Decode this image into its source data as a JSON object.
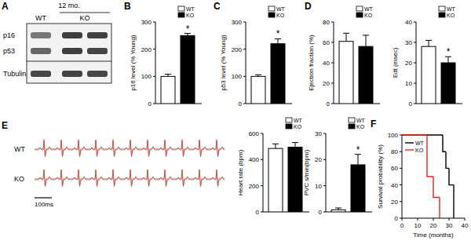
{
  "blot": {
    "panel": "A",
    "title": "12 mo.",
    "lanes": [
      "WT",
      "KO"
    ],
    "rows": [
      "p16",
      "p53",
      "Tubulin"
    ]
  },
  "ecg": {
    "panel": "E",
    "traces": [
      "WT",
      "KO"
    ],
    "scale_bar": "100ms"
  },
  "chart_data": [
    {
      "panel": "B",
      "type": "bar",
      "y_label": "p16 level (% Young)",
      "categories": [
        null
      ],
      "ylim": [
        0,
        300
      ],
      "yticks": [
        0,
        100,
        200,
        300
      ],
      "legend": "upper right",
      "series": [
        {
          "name": "WT",
          "color": "#ffffff",
          "values": [
            100
          ],
          "errors": [
            8
          ]
        },
        {
          "name": "KO",
          "color": "#000000",
          "values": [
            250
          ],
          "errors": [
            8
          ],
          "annotations": [
            "*"
          ]
        }
      ]
    },
    {
      "panel": "C",
      "type": "bar",
      "y_label": "p53 level (% Young)",
      "categories": [
        null
      ],
      "ylim": [
        0,
        300
      ],
      "yticks": [
        0,
        100,
        200,
        300
      ],
      "legend": "upper right",
      "series": [
        {
          "name": "WT",
          "color": "#ffffff",
          "values": [
            100
          ],
          "errors": [
            6
          ]
        },
        {
          "name": "KO",
          "color": "#000000",
          "values": [
            220
          ],
          "errors": [
            18
          ],
          "annotations": [
            "*"
          ]
        }
      ]
    },
    {
      "panel": "D",
      "type": "bar",
      "y_label": "Ejection fraction (%)",
      "categories": [
        null
      ],
      "ylim": [
        0,
        80
      ],
      "yticks": [
        0,
        20,
        40,
        60,
        80
      ],
      "legend": "upper right",
      "series": [
        {
          "name": "WT",
          "color": "#ffffff",
          "values": [
            61
          ],
          "errors": [
            8
          ]
        },
        {
          "name": "KO",
          "color": "#000000",
          "values": [
            56
          ],
          "errors": [
            11
          ]
        }
      ]
    },
    {
      "type": "bar",
      "y_label": "Edt (msec)",
      "categories": [
        null
      ],
      "ylim": [
        0,
        40
      ],
      "yticks": [
        0,
        10,
        20,
        30,
        40
      ],
      "legend": "upper right",
      "series": [
        {
          "name": "WT",
          "color": "#ffffff",
          "values": [
            28
          ],
          "errors": [
            3
          ]
        },
        {
          "name": "KO",
          "color": "#000000",
          "values": [
            20
          ],
          "errors": [
            3
          ],
          "annotations": [
            "*"
          ]
        }
      ]
    },
    {
      "type": "bar",
      "y_label": "Heart rate (bpm)",
      "categories": [
        null
      ],
      "ylim": [
        0,
        600
      ],
      "yticks": [
        0,
        200,
        400,
        600
      ],
      "legend": "upper right",
      "series": [
        {
          "name": "WT",
          "color": "#ffffff",
          "values": [
            485
          ],
          "errors": [
            35
          ]
        },
        {
          "name": "KO",
          "color": "#000000",
          "values": [
            495
          ],
          "errors": [
            35
          ]
        }
      ]
    },
    {
      "type": "bar",
      "y_label": "PVC s/min(bpm)",
      "categories": [
        null
      ],
      "ylim": [
        0,
        30
      ],
      "yticks": [
        0,
        10,
        20,
        30
      ],
      "legend": "upper right",
      "series": [
        {
          "name": "WT",
          "color": "#ffffff",
          "values": [
            0.8
          ],
          "errors": [
            0.7
          ]
        },
        {
          "name": "KO",
          "color": "#000000",
          "values": [
            18
          ],
          "errors": [
            4
          ],
          "annotations": [
            "*"
          ]
        }
      ]
    },
    {
      "panel": "F",
      "type": "line",
      "line_style": "step",
      "x_label": "Time (months)",
      "y_label": "Survival probability (%)",
      "xlim": [
        0,
        40
      ],
      "ylim": [
        0,
        100
      ],
      "xticks": [
        0,
        10,
        20,
        30,
        40
      ],
      "yticks": [
        0,
        20,
        40,
        60,
        80,
        100
      ],
      "legend": "upper left",
      "series": [
        {
          "name": "WT",
          "color": "#000000",
          "x": [
            0,
            26,
            28,
            30,
            33
          ],
          "values": [
            100,
            80,
            60,
            40,
            0
          ]
        },
        {
          "name": "KO",
          "color": "#e8231f",
          "x": [
            0,
            16,
            20,
            24
          ],
          "values": [
            100,
            50,
            25,
            0
          ]
        }
      ]
    }
  ]
}
